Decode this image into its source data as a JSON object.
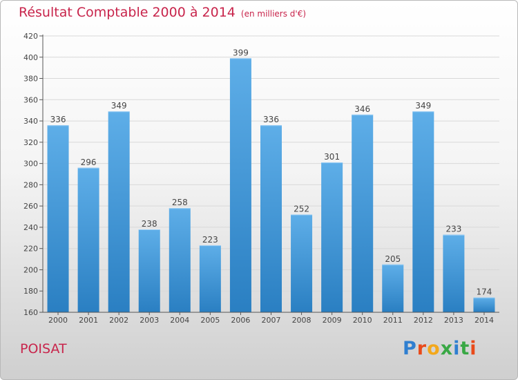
{
  "header": {
    "title": "Résultat Comptable 2000 à 2014",
    "subtitle": "(en milliers d'€)"
  },
  "footer": {
    "town": "POISAT",
    "logo_text": "Proxiti"
  },
  "colors": {
    "title": "#c8244b",
    "bar_light": "#5eaee8",
    "bar_dark": "#2a7fc2",
    "grid": "#d8d8d8"
  },
  "chart_data": {
    "type": "bar",
    "title": "Résultat Comptable 2000 à 2014",
    "subtitle": "(en milliers d'€)",
    "xlabel": "",
    "ylabel": "",
    "categories": [
      "2000",
      "2001",
      "2002",
      "2003",
      "2004",
      "2005",
      "2006",
      "2007",
      "2008",
      "2009",
      "2010",
      "2011",
      "2012",
      "2013",
      "2014"
    ],
    "values": [
      336,
      296,
      349,
      238,
      258,
      223,
      399,
      336,
      252,
      301,
      346,
      205,
      349,
      233,
      174
    ],
    "ylim": [
      160,
      420
    ],
    "yticks": [
      160,
      180,
      200,
      220,
      240,
      260,
      280,
      300,
      320,
      340,
      360,
      380,
      400,
      420
    ],
    "grid": true
  }
}
